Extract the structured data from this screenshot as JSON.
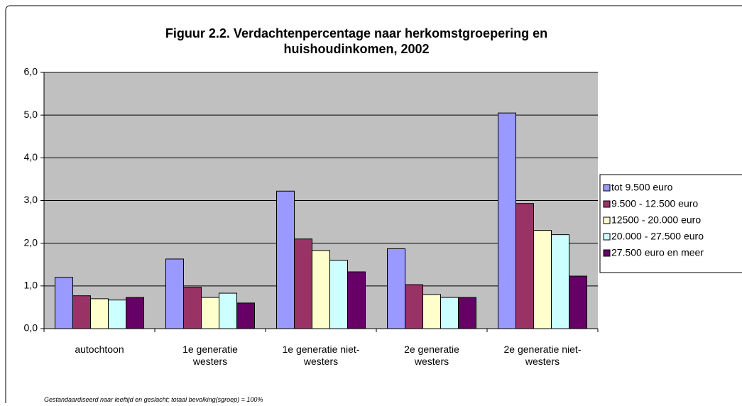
{
  "chart_data": {
    "type": "bar",
    "title": "Figuur 2.2. Verdachtenpercentage naar herkomstgroepering en huishoudinkomen, 2002",
    "categories": [
      "autochtoon",
      "1e generatie westers",
      "1e generatie niet-westers",
      "2e generatie westers",
      "2e generatie niet-westers"
    ],
    "series": [
      {
        "name": "tot 9.500 euro",
        "color": "#9999ff",
        "values": [
          1.2,
          1.63,
          3.22,
          1.87,
          5.05
        ]
      },
      {
        "name": "9.500 - 12.500 euro",
        "color": "#993366",
        "values": [
          0.77,
          0.97,
          2.1,
          1.03,
          2.93
        ]
      },
      {
        "name": "12500 - 20.000 euro",
        "color": "#ffffcc",
        "values": [
          0.7,
          0.73,
          1.83,
          0.8,
          2.3
        ]
      },
      {
        "name": "20.000 - 27.500 euro",
        "color": "#ccffff",
        "values": [
          0.67,
          0.83,
          1.6,
          0.73,
          2.2
        ]
      },
      {
        "name": "27.500 euro en meer",
        "color": "#660066",
        "values": [
          0.73,
          0.6,
          1.33,
          0.73,
          1.23
        ]
      }
    ],
    "ylim": [
      0,
      6
    ],
    "yticks": [
      {
        "value": 0,
        "label": "0,0"
      },
      {
        "value": 1,
        "label": "1,0"
      },
      {
        "value": 2,
        "label": "2,0"
      },
      {
        "value": 3,
        "label": "3,0"
      },
      {
        "value": 4,
        "label": "4,0"
      },
      {
        "value": 5,
        "label": "5,0"
      },
      {
        "value": 6,
        "label": "6,0"
      }
    ],
    "grid": true,
    "legend": "right",
    "plot_background": "#c0c0c0",
    "footnote": "Gestandaardiseerd naar leeftijd en geslacht; totaal bevolking(sgroep) = 100%"
  }
}
